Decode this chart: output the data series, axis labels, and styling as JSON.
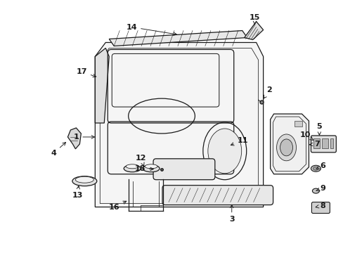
{
  "background_color": "#ffffff",
  "fig_width": 4.89,
  "fig_height": 3.6,
  "dpi": 100,
  "line_color": "#1a1a1a",
  "lw": 0.9,
  "tlw": 0.55
}
